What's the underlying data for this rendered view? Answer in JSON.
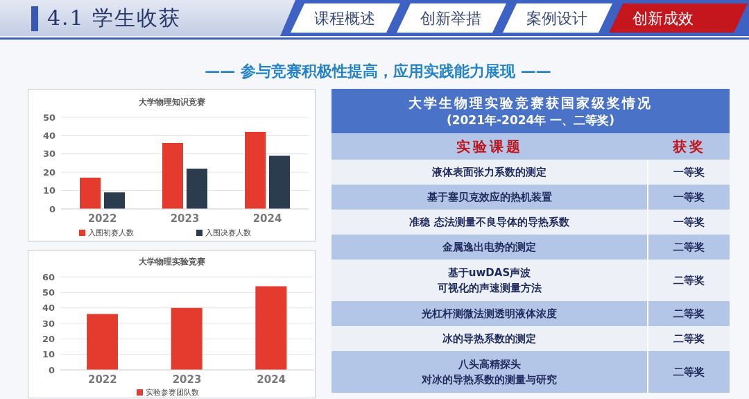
{
  "chart_data": [
    {
      "type": "other",
      "title": "4.1 学生收获",
      "subtitle": "—— 参与竞赛积极性提高，应用实践能力展现 ——",
      "annotations": [
        "课程概述",
        "创新举措",
        "案例设计",
        "创新成效"
      ]
    },
    {
      "type": "bar",
      "title": "大学物理知识竞赛",
      "categories": [
        "2022",
        "2023",
        "2024"
      ],
      "series": [
        {
          "name": "入围初赛人数",
          "color": "#e53a2e",
          "values": [
            17,
            36,
            42
          ]
        },
        {
          "name": "入围决赛人数",
          "color": "#2a3c4d",
          "values": [
            9,
            22,
            29
          ]
        }
      ],
      "ylim": [
        0,
        50
      ],
      "yticks": [
        0,
        10,
        20,
        30,
        40,
        50
      ],
      "grid": "y",
      "legend": "bottom"
    },
    {
      "type": "bar",
      "title": "大学物理实验竞赛",
      "categories": [
        "2022",
        "2023",
        "2024"
      ],
      "series": [
        {
          "name": "实验参赛团队数",
          "color": "#e53a2e",
          "values": [
            36,
            40,
            54
          ]
        }
      ],
      "ylim": [
        0,
        60
      ],
      "yticks": [
        0,
        10,
        20,
        30,
        40,
        50,
        60
      ],
      "grid": "y",
      "legend": "bottom"
    },
    {
      "type": "other",
      "title": "大学生物理实验竞赛获国家级奖情况",
      "subtitle": "(2021年-2024年 一、二等奖)",
      "categories": [
        "实验课题",
        "获奖"
      ],
      "y_categories": [
        "液体表面张力系数的测定",
        "基于塞贝克效应的热机装置",
        "准稳 态法测量不良导体的导热系数",
        "金属逸出电势的测定",
        "基于uwDAS声波",
        "可视化的声速测量方法",
        "光杠杆测微法测透明液体浓度",
        "冰的导热系数的测定",
        "八头高精探头",
        "对冰的导热系数的测量与研究"
      ],
      "y2_categories": [
        "一等奖",
        "一等奖",
        "一等奖",
        "二等奖",
        null,
        "二等奖",
        "二等奖",
        "二等奖",
        null,
        "二等奖"
      ]
    }
  ]
}
